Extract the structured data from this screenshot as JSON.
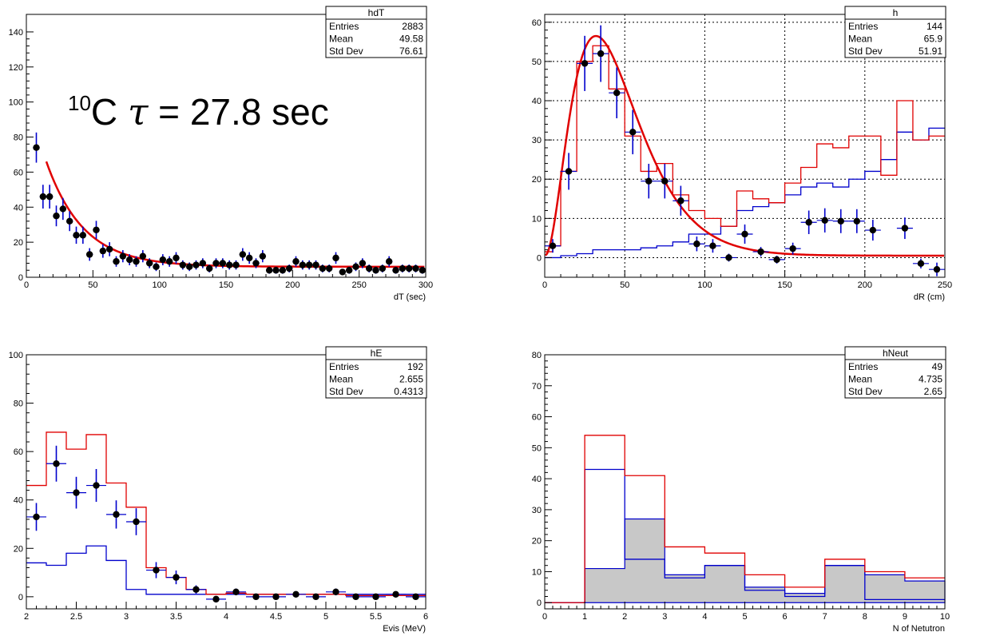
{
  "annotation": {
    "sup": "10",
    "base": "C",
    "tau": "τ",
    "rest": " = 27.8 sec"
  },
  "colors": {
    "data": "#000000",
    "red": "#e00000",
    "blue": "#0000cc",
    "fill_gray": "#c8c8c8"
  },
  "chart_data": [
    {
      "id": "hdT",
      "type": "scatter",
      "title": "hdT",
      "stats": [
        {
          "label": "Entries",
          "value": "2883"
        },
        {
          "label": "Mean",
          "value": "49.58"
        },
        {
          "label": "Std Dev",
          "value": "76.61"
        }
      ],
      "xlabel": "dT (sec)",
      "xlim": [
        0,
        300
      ],
      "ylim": [
        0,
        150
      ],
      "xticks": [
        0,
        50,
        100,
        150,
        200,
        250,
        300
      ],
      "yticks": [
        0,
        20,
        40,
        60,
        80,
        100,
        120,
        140
      ],
      "grid": false,
      "points": {
        "x": [
          7.5,
          12.5,
          17.5,
          22.5,
          27.5,
          32.5,
          37.5,
          42.5,
          47.5,
          52.5,
          57.5,
          62.5,
          67.5,
          72.5,
          77.5,
          82.5,
          87.5,
          92.5,
          97.5,
          102.5,
          107.5,
          112.5,
          117.5,
          122.5,
          127.5,
          132.5,
          137.5,
          142.5,
          147.5,
          152.5,
          157.5,
          162.5,
          167.5,
          172.5,
          177.5,
          182.5,
          187.5,
          192.5,
          197.5,
          202.5,
          207.5,
          212.5,
          217.5,
          222.5,
          227.5,
          232.5,
          237.5,
          242.5,
          247.5,
          252.5,
          257.5,
          262.5,
          267.5,
          272.5,
          277.5,
          282.5,
          287.5,
          292.5,
          297.5
        ],
        "y": [
          74,
          46,
          46,
          35,
          39,
          32,
          24,
          24,
          13,
          27,
          15,
          16,
          9,
          12,
          10,
          9,
          12,
          8,
          6,
          10,
          9,
          11,
          7,
          6,
          7,
          8,
          5,
          8,
          8,
          7,
          7,
          13,
          11,
          8,
          12,
          4,
          4,
          4,
          5,
          9,
          7,
          7,
          7,
          5,
          5,
          11,
          3,
          4,
          6,
          8,
          5,
          4,
          5,
          9,
          4,
          5,
          5,
          5,
          4
        ],
        "xerr": 2.5
      },
      "fit": {
        "type": "exponential",
        "tau": 27.8,
        "amplitude": 60,
        "constant": 6,
        "x_from": 15
      }
    },
    {
      "id": "h",
      "type": "scatter",
      "title": "h",
      "stats": [
        {
          "label": "Entries",
          "value": "144"
        },
        {
          "label": "Mean",
          "value": "65.9"
        },
        {
          "label": "Std Dev",
          "value": "51.91"
        }
      ],
      "xlabel": "dR (cm)",
      "xlim": [
        0,
        250
      ],
      "ylim": [
        -5,
        62
      ],
      "xticks": [
        0,
        50,
        100,
        150,
        200,
        250
      ],
      "yticks": [
        0,
        10,
        20,
        30,
        40,
        50,
        60
      ],
      "grid": true,
      "points": {
        "x": [
          5,
          15,
          25,
          35,
          45,
          55,
          65,
          75,
          85,
          95,
          105,
          115,
          125,
          135,
          145,
          155,
          165,
          175,
          185,
          195,
          205,
          225,
          235,
          245
        ],
        "y": [
          3,
          22,
          49.5,
          52,
          42,
          32,
          19.5,
          19.5,
          14.5,
          3.5,
          3,
          0,
          6,
          1.5,
          -0.5,
          2.3,
          9,
          9.5,
          9.3,
          9.3,
          7,
          7.5,
          -1.5,
          -3
        ],
        "xerr": 5
      },
      "red_hist": {
        "edges": [
          0,
          5,
          10,
          20,
          30,
          40,
          50,
          60,
          70,
          80,
          90,
          100,
          110,
          120,
          130,
          140,
          150,
          160,
          170,
          180,
          190,
          200,
          210,
          220,
          230,
          240,
          250
        ],
        "values": [
          1.5,
          3,
          22,
          50,
          54,
          43,
          31,
          22,
          24,
          16,
          12,
          10,
          8,
          17,
          15,
          14,
          19,
          23,
          29,
          28,
          31,
          31,
          21,
          40,
          30,
          31
        ]
      },
      "blue_hist": {
        "edges": [
          0,
          10,
          20,
          30,
          40,
          50,
          60,
          70,
          80,
          90,
          100,
          110,
          120,
          130,
          140,
          150,
          160,
          170,
          180,
          190,
          200,
          210,
          220,
          230,
          240,
          250
        ],
        "values": [
          0,
          0.5,
          1,
          2,
          2,
          2,
          2.5,
          3,
          4,
          6,
          6,
          8,
          12,
          13,
          14,
          16,
          18,
          19,
          18,
          20,
          22,
          25,
          32,
          30,
          33
        ]
      },
      "fit": {
        "type": "landau-like",
        "peak_x": 32,
        "peak_y": 56,
        "tail": 0.5
      }
    },
    {
      "id": "hE",
      "type": "scatter",
      "title": "hE",
      "stats": [
        {
          "label": "Entries",
          "value": "192"
        },
        {
          "label": "Mean",
          "value": "2.655"
        },
        {
          "label": "Std Dev",
          "value": "0.4313"
        }
      ],
      "xlabel": "Evis (MeV)",
      "xlim": [
        2,
        6
      ],
      "ylim": [
        -5,
        100
      ],
      "xticks": [
        2,
        2.5,
        3,
        3.5,
        4,
        4.5,
        5,
        5.5,
        6
      ],
      "yticks": [
        0,
        20,
        40,
        60,
        80,
        100
      ],
      "grid": false,
      "points": {
        "x": [
          2.1,
          2.3,
          2.5,
          2.7,
          2.9,
          3.1,
          3.3,
          3.5,
          3.7,
          3.9,
          4.1,
          4.3,
          4.5,
          4.7,
          4.9,
          5.1,
          5.3,
          5.5,
          5.7,
          5.9
        ],
        "y": [
          33,
          55,
          43,
          46,
          34,
          31,
          11,
          8,
          3,
          -1,
          2,
          0,
          0,
          1,
          0,
          2,
          0,
          0,
          1,
          0
        ],
        "xerr": 0.1
      },
      "red_hist": {
        "edges": [
          2,
          2.2,
          2.4,
          2.6,
          2.8,
          3.0,
          3.2,
          3.4,
          3.6,
          3.8,
          4.0,
          4.2,
          4.4,
          4.6,
          4.8,
          5.0,
          5.2,
          5.4,
          5.6,
          5.8,
          6.0
        ],
        "values": [
          46,
          68,
          61,
          67,
          47,
          37,
          12,
          8,
          3,
          1,
          1.5,
          1,
          1,
          1,
          1,
          1,
          0.5,
          0.5,
          0.5,
          0.5
        ]
      },
      "blue_hist": {
        "edges": [
          2,
          2.2,
          2.4,
          2.6,
          2.8,
          3.0,
          3.2,
          3.4,
          3.6,
          3.8,
          4.0,
          4.2,
          4.4,
          4.6,
          4.8,
          5.0,
          5.2,
          5.4,
          5.6,
          5.8,
          6.0
        ],
        "values": [
          14,
          13,
          18,
          21,
          15,
          3,
          1,
          1,
          1,
          1,
          1,
          1,
          1,
          1,
          1,
          1,
          1,
          1,
          1,
          1
        ]
      }
    },
    {
      "id": "hNeut",
      "type": "bar",
      "title": "hNeut",
      "stats": [
        {
          "label": "Entries",
          "value": "49"
        },
        {
          "label": "Mean",
          "value": "4.735"
        },
        {
          "label": "Std Dev",
          "value": "2.65"
        }
      ],
      "xlabel": "N of Netutron",
      "xlim": [
        0,
        10
      ],
      "ylim": [
        -2,
        80
      ],
      "xticks": [
        0,
        1,
        2,
        3,
        4,
        5,
        6,
        7,
        8,
        9,
        10
      ],
      "yticks": [
        0,
        10,
        20,
        30,
        40,
        50,
        60,
        70,
        80
      ],
      "grid": false,
      "edges": [
        0,
        1,
        2,
        3,
        4,
        5,
        6,
        7,
        8,
        9,
        10
      ],
      "red_hist": [
        0,
        54,
        41,
        18,
        16,
        9,
        5,
        14,
        10,
        8
      ],
      "blue_hist": [
        0,
        43,
        14,
        8,
        12,
        4,
        2,
        12,
        1,
        1
      ],
      "gray_hist": [
        0,
        11,
        27,
        9,
        12,
        5,
        3,
        12,
        9,
        7
      ],
      "gray_outline_blue": true
    }
  ]
}
